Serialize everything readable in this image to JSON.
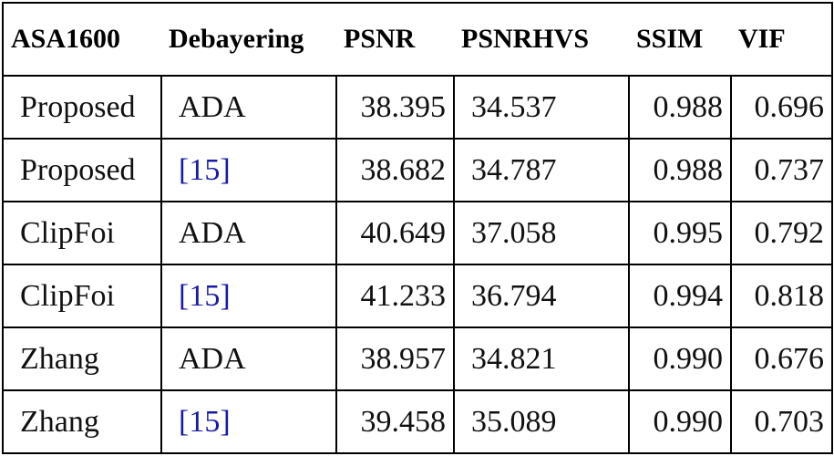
{
  "table": {
    "header": [
      "ASA1600",
      "Debayering",
      "PSNR",
      "PSNRHVS",
      "SSIM",
      "VIF"
    ],
    "rows": [
      [
        "Proposed",
        "ADA",
        "38.395",
        "34.537",
        "0.988",
        "0.696"
      ],
      [
        "Proposed",
        "[15]",
        "38.682",
        "34.787",
        "0.988",
        "0.737"
      ],
      [
        "ClipFoi",
        "ADA",
        "40.649",
        "37.058",
        "0.995",
        "0.792"
      ],
      [
        "ClipFoi",
        "[15]",
        "41.233",
        "36.794",
        "0.994",
        "0.818"
      ],
      [
        "Zhang",
        "ADA",
        "38.957",
        "34.821",
        "0.990",
        "0.676"
      ],
      [
        "Zhang",
        "[15]",
        "39.458",
        "35.089",
        "0.990",
        "0.703"
      ]
    ]
  }
}
